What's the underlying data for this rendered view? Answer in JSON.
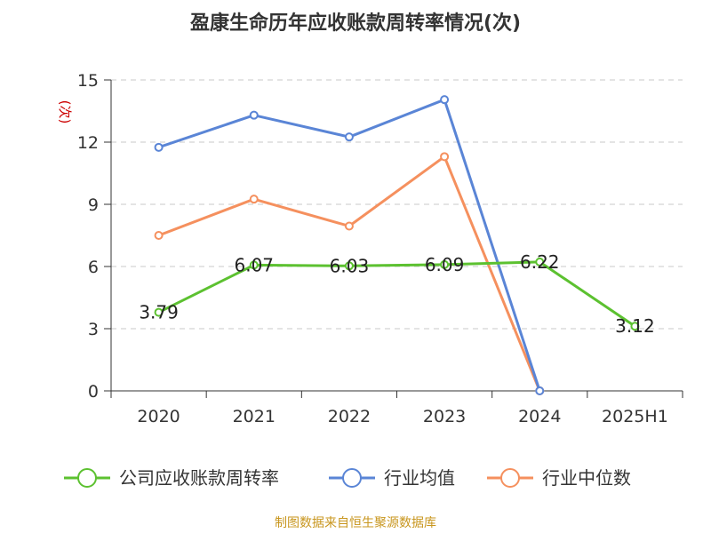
{
  "chart_data": {
    "type": "line",
    "title": "盈康生命历年应收账款周转率情况(次)",
    "ylabel": "(次)",
    "categories": [
      "2020",
      "2021",
      "2022",
      "2023",
      "2024",
      "2025H1"
    ],
    "ylim": [
      0,
      15
    ],
    "yticks": [
      0,
      3,
      6,
      9,
      12,
      15
    ],
    "grid": true,
    "legend_position": "bottom",
    "series": [
      {
        "name": "公司应收账款周转率",
        "color": "#5cc130",
        "values": [
          3.79,
          6.07,
          6.03,
          6.09,
          6.22,
          3.12
        ],
        "labels": [
          "3.79",
          "6.07",
          "6.03",
          "6.09",
          "6.22",
          "3.12"
        ]
      },
      {
        "name": "行业均值",
        "color": "#5a85d6",
        "values": [
          11.75,
          13.3,
          12.25,
          14.05,
          0,
          null
        ]
      },
      {
        "name": "行业中位数",
        "color": "#f5905e",
        "values": [
          7.5,
          9.25,
          7.95,
          11.3,
          0,
          null
        ]
      }
    ]
  },
  "source_note": "制图数据来自恒生聚源数据库"
}
